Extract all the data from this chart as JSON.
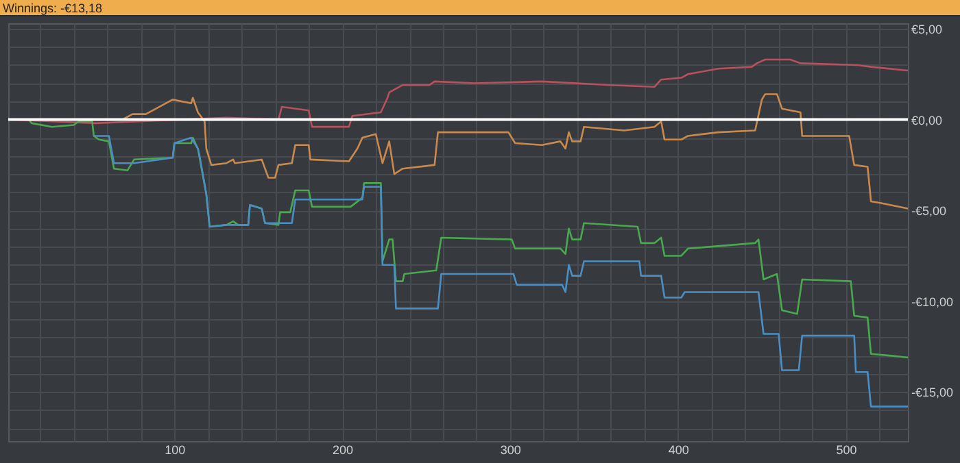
{
  "chart_data": {
    "type": "line",
    "title": "Winnings: -€13,18",
    "xlim": [
      1,
      537
    ],
    "ylim": [
      -17.7,
      5.3
    ],
    "xticks": [
      {
        "value": 20,
        "label": null
      },
      {
        "value": 40,
        "label": null
      },
      {
        "value": 60,
        "label": null
      },
      {
        "value": 80,
        "label": null
      },
      100,
      {
        "value": 120,
        "label": null
      },
      {
        "value": 140,
        "label": null
      },
      {
        "value": 160,
        "label": null
      },
      {
        "value": 180,
        "label": null
      },
      200,
      {
        "value": 220,
        "label": null
      },
      {
        "value": 240,
        "label": null
      },
      {
        "value": 260,
        "label": null
      },
      {
        "value": 280,
        "label": null
      },
      300,
      {
        "value": 320,
        "label": null
      },
      {
        "value": 340,
        "label": null
      },
      {
        "value": 360,
        "label": null
      },
      {
        "value": 380,
        "label": null
      },
      400,
      {
        "value": 420,
        "label": null
      },
      {
        "value": 440,
        "label": null
      },
      {
        "value": 460,
        "label": null
      },
      {
        "value": 480,
        "label": null
      },
      500,
      {
        "value": 520,
        "label": null
      }
    ],
    "yticks": [
      {
        "value": -17,
        "label": null
      },
      {
        "value": -16,
        "label": null
      },
      {
        "value": -15,
        "label": "-€15,00"
      },
      {
        "value": -14,
        "label": null
      },
      {
        "value": -13,
        "label": null
      },
      {
        "value": -12,
        "label": null
      },
      {
        "value": -11,
        "label": null
      },
      {
        "value": -10,
        "label": "-€10,00"
      },
      {
        "value": -9,
        "label": null
      },
      {
        "value": -8,
        "label": null
      },
      {
        "value": -7,
        "label": null
      },
      {
        "value": -6,
        "label": null
      },
      {
        "value": -5,
        "label": "-€5,00"
      },
      {
        "value": -4,
        "label": null
      },
      {
        "value": -3,
        "label": null
      },
      {
        "value": -2,
        "label": null
      },
      {
        "value": -1,
        "label": null
      },
      {
        "value": 0,
        "label": "€0,00"
      },
      {
        "value": 1,
        "label": null
      },
      {
        "value": 2,
        "label": null
      },
      {
        "value": 3,
        "label": null
      },
      {
        "value": 4,
        "label": null
      },
      {
        "value": 5,
        "label": "€5,00"
      }
    ],
    "grid": true,
    "ref_lines": [
      {
        "axis": "y",
        "value": 0,
        "color": "#ffffff"
      }
    ],
    "series": [
      {
        "color": "#b8505e",
        "x": [
          2,
          53,
          131,
          162,
          164,
          180,
          182,
          204,
          206,
          223,
          227,
          228,
          236,
          252,
          255,
          279,
          319,
          360,
          386,
          390,
          402,
          406,
          424,
          444,
          447,
          452,
          467,
          473,
          507,
          515,
          537
        ],
        "values": [
          0,
          -0.2,
          0.1,
          0,
          0.7,
          0.5,
          -0.4,
          -0.4,
          0.2,
          0.4,
          1.2,
          1.5,
          1.9,
          1.9,
          2.1,
          2.0,
          2.1,
          1.9,
          1.8,
          2.2,
          2.3,
          2.5,
          2.8,
          2.9,
          3.1,
          3.3,
          3.3,
          3.1,
          3.0,
          2.9,
          2.7
        ]
      },
      {
        "color": "#c98a4e",
        "x": [
          2,
          69,
          75,
          83,
          99,
          110,
          111,
          114,
          118,
          119,
          122,
          131,
          135,
          136,
          152,
          156,
          160,
          162,
          170,
          172,
          180,
          181,
          204,
          209,
          212,
          220,
          224,
          228,
          231,
          236,
          255,
          257,
          279,
          299,
          303,
          319,
          330,
          333,
          335,
          337,
          342,
          344,
          368,
          386,
          390,
          392,
          402,
          406,
          424,
          446,
          450,
          452,
          459,
          462,
          473,
          474,
          502,
          505,
          513,
          515,
          521,
          537
        ],
        "values": [
          0,
          0,
          0.3,
          0.3,
          1.1,
          0.9,
          1.2,
          0.4,
          -0.1,
          -1.6,
          -2.5,
          -2.4,
          -2.2,
          -2.4,
          -2.2,
          -3.2,
          -3.2,
          -2.5,
          -2.4,
          -1.4,
          -1.4,
          -2.2,
          -2.3,
          -1.6,
          -1.0,
          -0.8,
          -2.4,
          -1.2,
          -3.0,
          -2.7,
          -2.5,
          -0.7,
          -0.7,
          -0.7,
          -1.3,
          -1.4,
          -1.2,
          -1.6,
          -0.7,
          -1.2,
          -1.2,
          -0.4,
          -0.6,
          -0.4,
          -0.1,
          -1.1,
          -1.1,
          -0.9,
          -0.7,
          -0.6,
          1.1,
          1.4,
          1.4,
          0.6,
          0.4,
          -0.9,
          -0.9,
          -2.5,
          -2.6,
          -4.5,
          -4.6,
          -4.9
        ]
      },
      {
        "color": "#4aa84e",
        "x": [
          2,
          13,
          15,
          27,
          40,
          43,
          51,
          52,
          55,
          61,
          64,
          72,
          76,
          99,
          100,
          110,
          111,
          114,
          115,
          119,
          121,
          131,
          135,
          138,
          144,
          145,
          152,
          154,
          162,
          163,
          169,
          172,
          180,
          182,
          205,
          212,
          213,
          223,
          224,
          228,
          230,
          232,
          236,
          237,
          256,
          259,
          301,
          303,
          330,
          333,
          335,
          337,
          342,
          344,
          376,
          378,
          386,
          390,
          392,
          402,
          406,
          446,
          448,
          451,
          459,
          462,
          471,
          474,
          503,
          505,
          513,
          515,
          527,
          537
        ],
        "values": [
          0,
          0,
          -0.2,
          -0.4,
          -0.3,
          -0.1,
          -0.1,
          -0.9,
          -1.1,
          -1.2,
          -2.7,
          -2.8,
          -2.2,
          -2.1,
          -1.3,
          -1.3,
          -1.0,
          -1.6,
          -2.1,
          -4.1,
          -5.9,
          -5.8,
          -5.6,
          -5.8,
          -5.8,
          -4.7,
          -4.9,
          -5.7,
          -5.8,
          -5.1,
          -5.1,
          -3.9,
          -3.9,
          -4.8,
          -4.8,
          -4.3,
          -3.5,
          -3.5,
          -7.8,
          -6.6,
          -6.6,
          -8.9,
          -8.9,
          -8.5,
          -8.3,
          -6.5,
          -6.6,
          -7.1,
          -7.1,
          -7.4,
          -6.0,
          -6.6,
          -6.6,
          -5.7,
          -5.9,
          -6.8,
          -6.8,
          -6.5,
          -7.5,
          -7.5,
          -7.1,
          -6.8,
          -6.6,
          -8.8,
          -8.5,
          -10.5,
          -10.7,
          -8.8,
          -8.9,
          -10.8,
          -10.9,
          -12.9,
          -13.0,
          -13.1
        ]
      },
      {
        "color": "#4a8ec4",
        "x": [
          52,
          55,
          61,
          64,
          76,
          99,
          100,
          110,
          114,
          115,
          119,
          121,
          131,
          138,
          144,
          145,
          152,
          154,
          170,
          172,
          212,
          213,
          223,
          224,
          231,
          232,
          257,
          259,
          302,
          304,
          331,
          333,
          335,
          337,
          342,
          344,
          377,
          378,
          390,
          392,
          402,
          404,
          448,
          451,
          460,
          462,
          472,
          474,
          505,
          506,
          513,
          515,
          537
        ],
        "values": [
          -0.9,
          -0.9,
          -0.9,
          -2.4,
          -2.4,
          -2.1,
          -1.3,
          -1.0,
          -1.6,
          -2.0,
          -4.1,
          -5.9,
          -5.8,
          -5.8,
          -5.8,
          -4.7,
          -4.9,
          -5.7,
          -5.7,
          -4.4,
          -4.4,
          -3.7,
          -3.7,
          -8.0,
          -8.0,
          -10.4,
          -10.4,
          -8.5,
          -8.5,
          -9.1,
          -9.1,
          -9.5,
          -8.0,
          -8.6,
          -8.6,
          -7.8,
          -7.8,
          -8.6,
          -8.6,
          -9.8,
          -9.8,
          -9.5,
          -9.5,
          -11.8,
          -11.8,
          -13.8,
          -13.8,
          -11.9,
          -11.9,
          -13.9,
          -13.9,
          -15.8,
          -15.8
        ]
      }
    ]
  }
}
